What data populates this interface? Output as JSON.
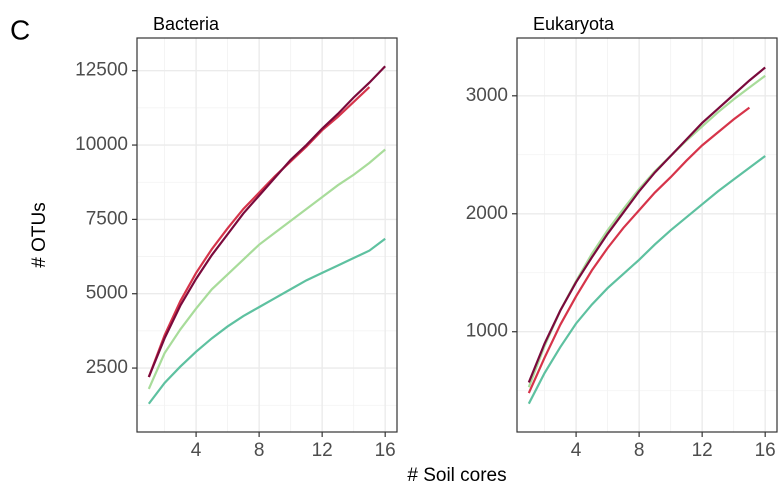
{
  "panel_label": "C",
  "xlabel": "# Soil cores",
  "ylabel": "# OTUs",
  "chart_data": [
    {
      "type": "line",
      "title": "Bacteria",
      "x": [
        1,
        2,
        3,
        4,
        5,
        6,
        7,
        8,
        9,
        10,
        11,
        12,
        13,
        14,
        15,
        16
      ],
      "series": [
        {
          "color": "#5ec1a0",
          "values": [
            1300,
            2000,
            2550,
            3050,
            3500,
            3900,
            4250,
            4550,
            4850,
            5150,
            5450,
            5700,
            5950,
            6200,
            6450,
            6850
          ]
        },
        {
          "color": "#a8dc9a",
          "values": [
            1800,
            3000,
            3800,
            4500,
            5150,
            5650,
            6150,
            6650,
            7050,
            7450,
            7850,
            8250,
            8650,
            9000,
            9400,
            9850
          ]
        },
        {
          "color": "#d6344a",
          "values": [
            2200,
            3600,
            4750,
            5700,
            6500,
            7200,
            7850,
            8400,
            8950,
            9450,
            9950,
            10500,
            10950,
            11450,
            11950,
            null
          ]
        },
        {
          "color": "#7a0a3c",
          "values": [
            2200,
            3500,
            4600,
            5500,
            6300,
            7000,
            7700,
            8300,
            8900,
            9500,
            10000,
            10550,
            11050,
            11600,
            12100,
            12650
          ]
        }
      ],
      "xlim": [
        0.25,
        16.75
      ],
      "xticks": [
        4,
        8,
        12,
        16
      ],
      "ylim": [
        350,
        13600
      ],
      "yticks": [
        2500,
        5000,
        7500,
        10000,
        12500
      ],
      "grid": true
    },
    {
      "type": "line",
      "title": "Eukaryota",
      "x": [
        1,
        2,
        3,
        4,
        5,
        6,
        7,
        8,
        9,
        10,
        11,
        12,
        13,
        14,
        15,
        16
      ],
      "series": [
        {
          "color": "#5ec1a0",
          "values": [
            390,
            650,
            870,
            1070,
            1230,
            1370,
            1490,
            1610,
            1740,
            1860,
            1970,
            2080,
            2190,
            2290,
            2390,
            2490
          ]
        },
        {
          "color": "#a8dc9a",
          "values": [
            530,
            880,
            1180,
            1430,
            1660,
            1860,
            2040,
            2210,
            2360,
            2490,
            2620,
            2740,
            2860,
            2970,
            3070,
            3170
          ]
        },
        {
          "color": "#d6344a",
          "values": [
            480,
            780,
            1060,
            1300,
            1520,
            1710,
            1880,
            2030,
            2180,
            2310,
            2450,
            2580,
            2690,
            2800,
            2900,
            null
          ]
        },
        {
          "color": "#7a0a3c",
          "values": [
            570,
            900,
            1180,
            1420,
            1630,
            1830,
            2010,
            2190,
            2350,
            2490,
            2630,
            2770,
            2890,
            3010,
            3130,
            3240
          ]
        }
      ],
      "xlim": [
        0.25,
        16.75
      ],
      "xticks": [
        4,
        8,
        12,
        16
      ],
      "ylim": [
        150,
        3490
      ],
      "yticks": [
        1000,
        2000,
        3000
      ],
      "grid": true
    }
  ]
}
